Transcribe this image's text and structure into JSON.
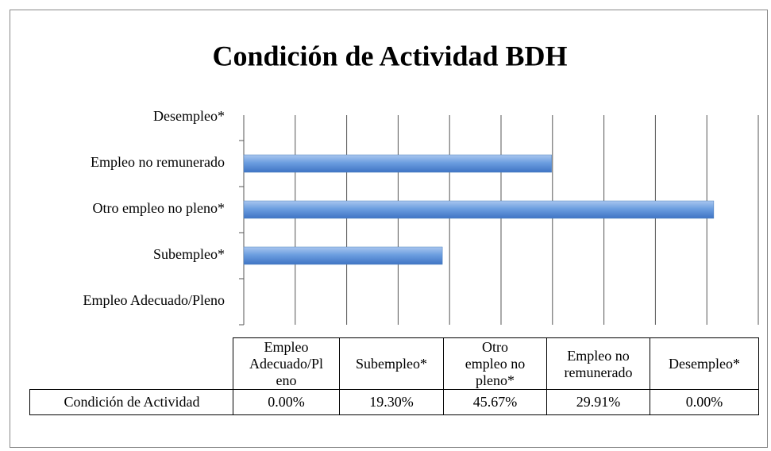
{
  "chart_data": {
    "type": "barh",
    "title": "Condición de Actividad BDH",
    "categories": [
      "Empleo Adecuado/Pleno",
      "Subempleo*",
      "Otro empleo no pleno*",
      "Empleo no remunerado",
      "Desempleo*"
    ],
    "series": [
      {
        "name": "Condición de Actividad",
        "color": "#4f81bd",
        "values": [
          0,
          19.3,
          45.67,
          29.91,
          0
        ],
        "value_labels": [
          "0.00%",
          "19.30%",
          "45.67%",
          "29.91%",
          "0.00%"
        ]
      }
    ],
    "xlim": [
      0,
      50
    ],
    "xticks": [
      0,
      5,
      10,
      15,
      20,
      25,
      30,
      35,
      40,
      45,
      50
    ],
    "grid": true
  }
}
